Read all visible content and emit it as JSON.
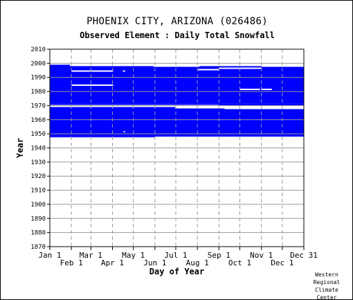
{
  "header": {
    "title": "PHOENIX CITY, ARIZONA   (026486)",
    "subtitle": "Observed Element : Daily Total Snowfall"
  },
  "credit": [
    "Western",
    "Regional",
    "Climate",
    "Center"
  ],
  "chart_data": {
    "type": "heatmap",
    "xlabel": "Day of Year",
    "ylabel": "Year",
    "xlim": [
      1,
      366
    ],
    "ylim": [
      1870,
      2010
    ],
    "y_ticks": [
      1870,
      1880,
      1890,
      1900,
      1910,
      1920,
      1930,
      1940,
      1950,
      1960,
      1970,
      1980,
      1990,
      2000,
      2010
    ],
    "x_ticks_top": [
      {
        "day": 1,
        "label": "Jan 1"
      },
      {
        "day": 60,
        "label": "Mar 1"
      },
      {
        "day": 121,
        "label": "May 1"
      },
      {
        "day": 182,
        "label": "Jul 1"
      },
      {
        "day": 244,
        "label": "Sep 1"
      },
      {
        "day": 305,
        "label": "Nov 1"
      },
      {
        "day": 366,
        "label": "Dec 31"
      }
    ],
    "x_ticks_bottom": [
      {
        "day": 32,
        "label": "Feb 1"
      },
      {
        "day": 91,
        "label": "Apr 1"
      },
      {
        "day": 152,
        "label": "Jun 1"
      },
      {
        "day": 213,
        "label": "Aug 1"
      },
      {
        "day": 274,
        "label": "Oct 1"
      },
      {
        "day": 335,
        "label": "Dec 1"
      }
    ],
    "grid": true,
    "colors": {
      "observed": "#0000ff",
      "missing": "#ffffff",
      "grid": "#999999"
    },
    "observed_blocks": [
      {
        "day_start": 1,
        "day_end": 366,
        "year_start": 1948,
        "year_end": 1967.5
      },
      {
        "day_start": 1,
        "day_end": 366,
        "year_start": 1971.5,
        "year_end": 1997.5
      }
    ],
    "extra_observed_blocks": [
      {
        "day_start": 1,
        "day_end": 181,
        "year_start": 1966,
        "year_end": 1969
      },
      {
        "day_start": 1,
        "day_end": 252,
        "year_start": 1966,
        "year_end": 1968
      },
      {
        "day_start": 1,
        "day_end": 152,
        "year_start": 1947.5,
        "year_end": 1948
      },
      {
        "day_start": 1,
        "day_end": 366,
        "year_start": 1970.5,
        "year_end": 1971.5
      },
      {
        "day_start": 244,
        "day_end": 366,
        "year_start": 1970,
        "year_end": 1971
      },
      {
        "day_start": 1,
        "day_end": 30,
        "year_start": 1997,
        "year_end": 1999
      },
      {
        "day_start": 30,
        "day_end": 150,
        "year_start": 1997,
        "year_end": 1998
      },
      {
        "day_start": 150,
        "day_end": 185,
        "year_start": 1996,
        "year_end": 1997
      },
      {
        "day_start": 216,
        "day_end": 305,
        "year_start": 1997,
        "year_end": 1998
      }
    ],
    "missing_gaps": [
      {
        "day_start": 32,
        "day_end": 92,
        "year": 1994.5
      },
      {
        "day_start": 106,
        "day_end": 109,
        "year": 1994.5
      },
      {
        "day_start": 32,
        "day_end": 92,
        "year": 1984.5
      },
      {
        "day_start": 214,
        "day_end": 244,
        "year": 1995.5
      },
      {
        "day_start": 244,
        "day_end": 305,
        "year": 1996.5
      },
      {
        "day_start": 274,
        "day_end": 303,
        "year": 1981.5
      },
      {
        "day_start": 305,
        "day_end": 320,
        "year": 1981.5
      },
      {
        "day_start": 107,
        "day_end": 109,
        "year": 1951.5
      }
    ]
  }
}
